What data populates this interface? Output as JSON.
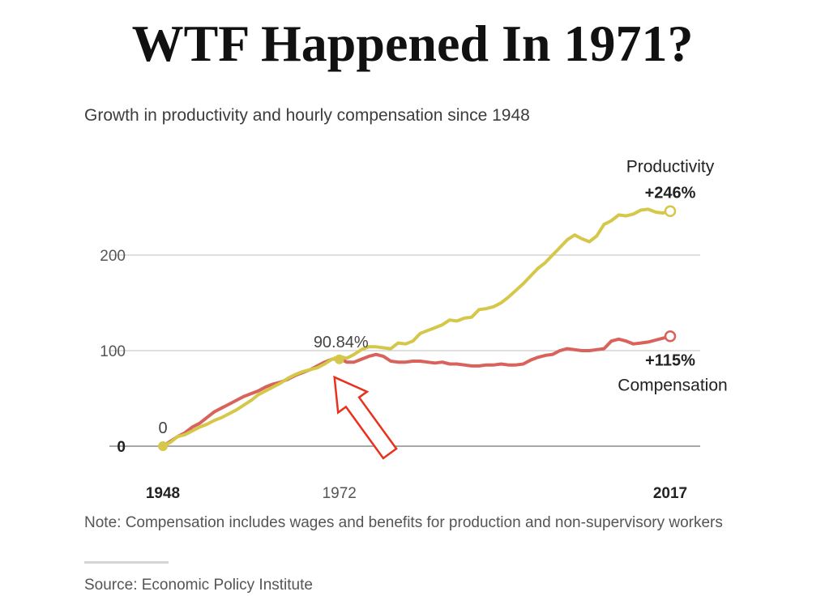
{
  "headline": "WTF Happened In 1971?",
  "note": "Note: Compensation includes wages and benefits for production and non-supervisory workers",
  "source": "Source: Economic Policy Institute",
  "colors": {
    "productivity": "#d4c74a",
    "compensation": "#d9625c",
    "grid": "#cccccc",
    "annotation_arrow": "#e8321e"
  },
  "chart_data": {
    "type": "line",
    "title": "Growth in productivity and hourly compensation since 1948",
    "xlabel": "",
    "ylabel": "",
    "xlim": [
      1948,
      2017
    ],
    "ylim": [
      0,
      246
    ],
    "x_tick_labels": [
      {
        "value": 1948,
        "label": "1948",
        "bold": true
      },
      {
        "value": 1972,
        "label": "1972",
        "bold": false
      },
      {
        "value": 2017,
        "label": "2017",
        "bold": true
      }
    ],
    "y_tick_labels": [
      {
        "value": 0,
        "label": "0",
        "bold": true
      },
      {
        "value": 100,
        "label": "100",
        "bold": false
      },
      {
        "value": 200,
        "label": "200",
        "bold": false
      }
    ],
    "grid": "horizontal",
    "legend": "direct labels",
    "series": [
      {
        "name": "Productivity",
        "end_label": "+246%",
        "x": [
          1948,
          1949,
          1950,
          1951,
          1952,
          1953,
          1954,
          1955,
          1956,
          1957,
          1958,
          1959,
          1960,
          1961,
          1962,
          1963,
          1964,
          1965,
          1966,
          1967,
          1968,
          1969,
          1970,
          1971,
          1972,
          1973,
          1974,
          1975,
          1976,
          1977,
          1978,
          1979,
          1980,
          1981,
          1982,
          1983,
          1984,
          1985,
          1986,
          1987,
          1988,
          1989,
          1990,
          1991,
          1992,
          1993,
          1994,
          1995,
          1996,
          1997,
          1998,
          1999,
          2000,
          2001,
          2002,
          2003,
          2004,
          2005,
          2006,
          2007,
          2008,
          2009,
          2010,
          2011,
          2012,
          2013,
          2014,
          2015,
          2016,
          2017
        ],
        "values": [
          0,
          4,
          10,
          12,
          16,
          20,
          23,
          27,
          30,
          34,
          38,
          43,
          48,
          54,
          58,
          62,
          66,
          71,
          75,
          78,
          80,
          82,
          86,
          91,
          94,
          92,
          96,
          101,
          104,
          104,
          103,
          102,
          108,
          107,
          110,
          118,
          121,
          124,
          127,
          132,
          131,
          134,
          135,
          143,
          144,
          146,
          150,
          156,
          163,
          170,
          178,
          186,
          192,
          200,
          208,
          216,
          221,
          217,
          214,
          220,
          232,
          236,
          242,
          241,
          243,
          247,
          248,
          245,
          244,
          246
        ]
      },
      {
        "name": "Compensation",
        "end_label": "+115%",
        "x": [
          1948,
          1949,
          1950,
          1951,
          1952,
          1953,
          1954,
          1955,
          1956,
          1957,
          1958,
          1959,
          1960,
          1961,
          1962,
          1963,
          1964,
          1965,
          1966,
          1967,
          1968,
          1969,
          1970,
          1971,
          1972,
          1973,
          1974,
          1975,
          1976,
          1977,
          1978,
          1979,
          1980,
          1981,
          1982,
          1983,
          1984,
          1985,
          1986,
          1987,
          1988,
          1989,
          1990,
          1991,
          1992,
          1993,
          1994,
          1995,
          1996,
          1997,
          1998,
          1999,
          2000,
          2001,
          2002,
          2003,
          2004,
          2005,
          2006,
          2007,
          2008,
          2009,
          2010,
          2011,
          2012,
          2013,
          2014,
          2015,
          2016,
          2017
        ],
        "values": [
          0,
          5,
          10,
          14,
          20,
          24,
          30,
          36,
          40,
          44,
          48,
          52,
          55,
          58,
          62,
          65,
          67,
          70,
          74,
          77,
          80,
          84,
          88,
          91,
          92,
          88,
          88,
          91,
          94,
          96,
          94,
          89,
          88,
          88,
          89,
          89,
          88,
          87,
          88,
          86,
          86,
          85,
          84,
          84,
          85,
          85,
          86,
          85,
          85,
          86,
          90,
          93,
          95,
          96,
          100,
          102,
          101,
          100,
          100,
          101,
          102,
          110,
          112,
          110,
          107,
          108,
          109,
          111,
          113,
          115
        ]
      },
      {
        "name": "",
        "marker_label": "90.84%",
        "x": [
          1972
        ],
        "values": [
          90.84
        ]
      },
      {
        "name": "",
        "marker_label": "0",
        "x": [
          1948
        ],
        "values": [
          0
        ]
      }
    ]
  }
}
